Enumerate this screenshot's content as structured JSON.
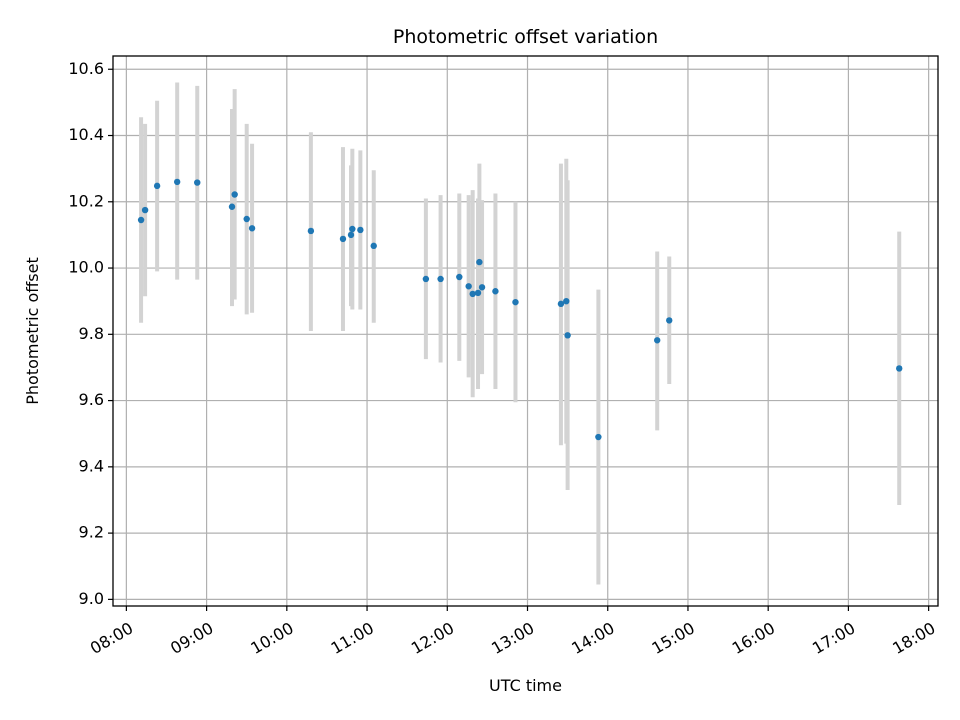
{
  "chart_data": {
    "type": "scatter",
    "title": "Photometric offset variation",
    "xlabel": "UTC time",
    "ylabel": "Photometric offset",
    "xlim": [
      "07:50",
      "18:07"
    ],
    "ylim": [
      8.98,
      10.64
    ],
    "x_ticks": [
      "08:00",
      "09:00",
      "10:00",
      "11:00",
      "12:00",
      "13:00",
      "14:00",
      "15:00",
      "16:00",
      "17:00",
      "18:00"
    ],
    "y_ticks": [
      "9.0",
      "9.2",
      "9.4",
      "9.6",
      "9.8",
      "10.0",
      "10.2",
      "10.4",
      "10.6"
    ],
    "grid": true,
    "colors": {
      "point": "#1f77b4",
      "errorbar": "#d3d3d3",
      "grid": "#b0b0b0"
    },
    "points": [
      {
        "time": "08:11",
        "y": 10.145,
        "lo": 9.835,
        "hi": 10.455
      },
      {
        "time": "08:14",
        "y": 10.175,
        "lo": 9.915,
        "hi": 10.435
      },
      {
        "time": "08:23",
        "y": 10.248,
        "lo": 9.99,
        "hi": 10.505
      },
      {
        "time": "08:38",
        "y": 10.26,
        "lo": 9.965,
        "hi": 10.56
      },
      {
        "time": "08:53",
        "y": 10.258,
        "lo": 9.965,
        "hi": 10.55
      },
      {
        "time": "09:19",
        "y": 10.185,
        "lo": 9.885,
        "hi": 10.48
      },
      {
        "time": "09:21",
        "y": 10.222,
        "lo": 9.905,
        "hi": 10.54
      },
      {
        "time": "09:30",
        "y": 10.148,
        "lo": 9.86,
        "hi": 10.435
      },
      {
        "time": "09:34",
        "y": 10.12,
        "lo": 9.865,
        "hi": 10.375
      },
      {
        "time": "10:18",
        "y": 10.112,
        "lo": 9.81,
        "hi": 10.41
      },
      {
        "time": "10:42",
        "y": 10.088,
        "lo": 9.81,
        "hi": 10.365
      },
      {
        "time": "10:48",
        "y": 10.1,
        "lo": 9.885,
        "hi": 10.31
      },
      {
        "time": "10:49",
        "y": 10.118,
        "lo": 9.875,
        "hi": 10.36
      },
      {
        "time": "10:55",
        "y": 10.115,
        "lo": 9.875,
        "hi": 10.355
      },
      {
        "time": "11:05",
        "y": 10.067,
        "lo": 9.835,
        "hi": 10.295
      },
      {
        "time": "11:44",
        "y": 9.967,
        "lo": 9.725,
        "hi": 10.21
      },
      {
        "time": "11:55",
        "y": 9.967,
        "lo": 9.715,
        "hi": 10.22
      },
      {
        "time": "12:09",
        "y": 9.973,
        "lo": 9.72,
        "hi": 10.225
      },
      {
        "time": "12:16",
        "y": 9.945,
        "lo": 9.67,
        "hi": 10.22
      },
      {
        "time": "12:19",
        "y": 9.922,
        "lo": 9.61,
        "hi": 10.235
      },
      {
        "time": "12:23",
        "y": 9.925,
        "lo": 9.635,
        "hi": 10.21
      },
      {
        "time": "12:24",
        "y": 10.018,
        "lo": 9.725,
        "hi": 10.315
      },
      {
        "time": "12:26",
        "y": 9.942,
        "lo": 9.68,
        "hi": 10.205
      },
      {
        "time": "12:36",
        "y": 9.93,
        "lo": 9.635,
        "hi": 10.225
      },
      {
        "time": "12:51",
        "y": 9.897,
        "lo": 9.595,
        "hi": 10.2
      },
      {
        "time": "13:25",
        "y": 9.892,
        "lo": 9.465,
        "hi": 10.315
      },
      {
        "time": "13:29",
        "y": 9.9,
        "lo": 9.47,
        "hi": 10.33
      },
      {
        "time": "13:30",
        "y": 9.797,
        "lo": 9.33,
        "hi": 10.265
      },
      {
        "time": "13:53",
        "y": 9.49,
        "lo": 9.045,
        "hi": 9.935
      },
      {
        "time": "14:37",
        "y": 9.782,
        "lo": 9.51,
        "hi": 10.05
      },
      {
        "time": "14:46",
        "y": 9.842,
        "lo": 9.65,
        "hi": 10.035
      },
      {
        "time": "17:38",
        "y": 9.697,
        "lo": 9.285,
        "hi": 10.11
      }
    ]
  }
}
